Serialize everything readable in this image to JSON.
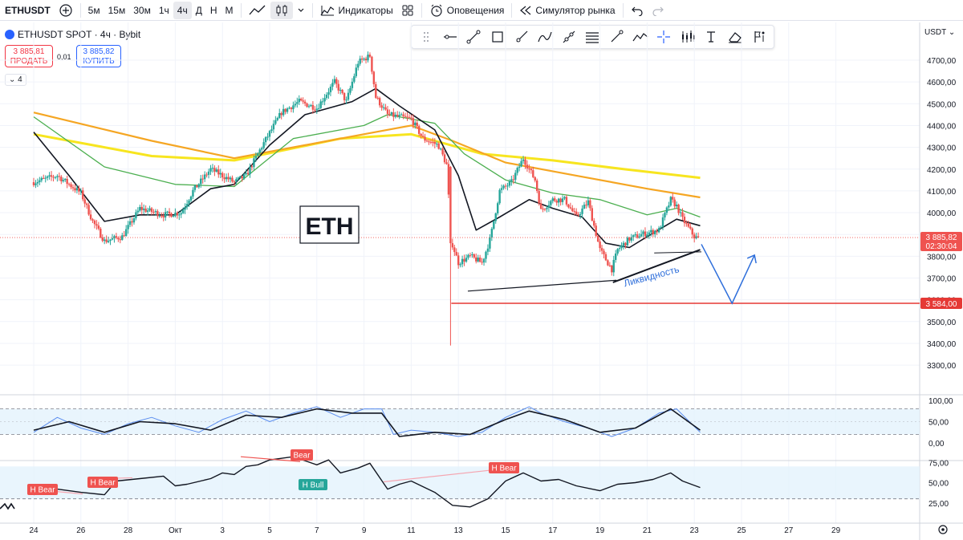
{
  "toolbar": {
    "symbol": "ETHUSDT",
    "intervals": [
      "5м",
      "15м",
      "30м",
      "1ч",
      "4ч",
      "Д",
      "Н",
      "М"
    ],
    "active_interval": "4ч",
    "indicators_label": "Индикаторы",
    "alerts_label": "Оповещения",
    "replay_label": "Симулятор рынка"
  },
  "legend": {
    "title": "ETHUSDT SPOT · 4ч · Bybit",
    "sell_price": "3 885,81",
    "sell_label": "ПРОДАТЬ",
    "spread": "0,01",
    "buy_price": "3 885,82",
    "buy_label": "КУПИТЬ",
    "indicators_count": "4"
  },
  "currency": "USDT",
  "annotations": {
    "eth_label": "ETH",
    "liquidity_label": "Ликвидность",
    "level_label": "3 584,00",
    "current_price": "3 885,82",
    "countdown": "02:30:04"
  },
  "colors": {
    "bull": "#26a69a",
    "bear": "#ef5350",
    "ema_yellow": "#f7e51f",
    "ema_orange": "#f5a623",
    "ema_green": "#4caf50",
    "ema_black": "#131722",
    "level_red": "#e53935",
    "arrow_blue": "#2f6fdb",
    "panel_fill": "#e3f2fd"
  },
  "chart_data": [
    {
      "type": "candlestick",
      "x_ticks": [
        "24",
        "26",
        "28",
        "Окт",
        "3",
        "5",
        "7",
        "9",
        "11",
        "13",
        "15",
        "17",
        "19",
        "21",
        "23",
        "25",
        "27",
        "29"
      ],
      "y_ticks": [
        "4700,00",
        "4600,00",
        "4500,00",
        "4400,00",
        "4300,00",
        "4200,00",
        "4100,00",
        "4000,00",
        "3900,00",
        "3800,00",
        "3700,00",
        "3600,00",
        "3500,00",
        "3400,00",
        "3300,00"
      ],
      "ylim": [
        3260,
        4780
      ],
      "anchors": [
        {
          "d": 0,
          "p": 4140
        },
        {
          "d": 2,
          "p": 4170
        },
        {
          "d": 4,
          "p": 4090
        },
        {
          "d": 5,
          "p": 3960
        },
        {
          "d": 6,
          "p": 3870
        },
        {
          "d": 7.5,
          "p": 3890
        },
        {
          "d": 9,
          "p": 4020
        },
        {
          "d": 11,
          "p": 3990
        },
        {
          "d": 12.5,
          "p": 4000
        },
        {
          "d": 13.5,
          "p": 4100
        },
        {
          "d": 15,
          "p": 4200
        },
        {
          "d": 17,
          "p": 4140
        },
        {
          "d": 18,
          "p": 4170
        },
        {
          "d": 19.5,
          "p": 4320
        },
        {
          "d": 21,
          "p": 4460
        },
        {
          "d": 22.5,
          "p": 4510
        },
        {
          "d": 24,
          "p": 4480
        },
        {
          "d": 25.5,
          "p": 4600
        },
        {
          "d": 26.5,
          "p": 4510
        },
        {
          "d": 27.5,
          "p": 4690
        },
        {
          "d": 28.5,
          "p": 4720
        },
        {
          "d": 29,
          "p": 4530
        },
        {
          "d": 30,
          "p": 4450
        },
        {
          "d": 32,
          "p": 4430
        },
        {
          "d": 33,
          "p": 4340
        },
        {
          "d": 34.3,
          "p": 4310
        },
        {
          "d": 35,
          "p": 4220
        },
        {
          "d": 35.4,
          "p": 3870
        },
        {
          "d": 36,
          "p": 3770
        },
        {
          "d": 37,
          "p": 3800
        },
        {
          "d": 38,
          "p": 3770
        },
        {
          "d": 38.7,
          "p": 3880
        },
        {
          "d": 39.5,
          "p": 4100
        },
        {
          "d": 40.5,
          "p": 4140
        },
        {
          "d": 41.5,
          "p": 4250
        },
        {
          "d": 42.5,
          "p": 4150
        },
        {
          "d": 43,
          "p": 4010
        },
        {
          "d": 44,
          "p": 4060
        },
        {
          "d": 45,
          "p": 4060
        },
        {
          "d": 46,
          "p": 3980
        },
        {
          "d": 47,
          "p": 4050
        },
        {
          "d": 48,
          "p": 3830
        },
        {
          "d": 49,
          "p": 3740
        },
        {
          "d": 49.5,
          "p": 3830
        },
        {
          "d": 50.5,
          "p": 3880
        },
        {
          "d": 51.5,
          "p": 3900
        },
        {
          "d": 53,
          "p": 3920
        },
        {
          "d": 54,
          "p": 4060
        },
        {
          "d": 54.5,
          "p": 4030
        },
        {
          "d": 55,
          "p": 3970
        },
        {
          "d": 56,
          "p": 3890
        },
        {
          "d": 56.4,
          "p": 3880
        }
      ],
      "ema_yellow": [
        {
          "d": 0,
          "p": 4360
        },
        {
          "d": 10,
          "p": 4260
        },
        {
          "d": 17,
          "p": 4240
        },
        {
          "d": 26,
          "p": 4340
        },
        {
          "d": 32,
          "p": 4360
        },
        {
          "d": 38,
          "p": 4270
        },
        {
          "d": 44,
          "p": 4240
        },
        {
          "d": 50,
          "p": 4200
        },
        {
          "d": 56.5,
          "p": 4160
        }
      ],
      "ema_orange": [
        {
          "d": 0,
          "p": 4460
        },
        {
          "d": 10,
          "p": 4330
        },
        {
          "d": 17,
          "p": 4250
        },
        {
          "d": 26,
          "p": 4340
        },
        {
          "d": 32,
          "p": 4400
        },
        {
          "d": 35.5,
          "p": 4330
        },
        {
          "d": 40,
          "p": 4230
        },
        {
          "d": 46,
          "p": 4170
        },
        {
          "d": 52,
          "p": 4110
        },
        {
          "d": 56.5,
          "p": 4070
        }
      ],
      "ema_green": [
        {
          "d": 0,
          "p": 4440
        },
        {
          "d": 6,
          "p": 4210
        },
        {
          "d": 12,
          "p": 4130
        },
        {
          "d": 17,
          "p": 4120
        },
        {
          "d": 22,
          "p": 4340
        },
        {
          "d": 28,
          "p": 4400
        },
        {
          "d": 30,
          "p": 4450
        },
        {
          "d": 34,
          "p": 4410
        },
        {
          "d": 36.5,
          "p": 4270
        },
        {
          "d": 40,
          "p": 4150
        },
        {
          "d": 44,
          "p": 4090
        },
        {
          "d": 48,
          "p": 4060
        },
        {
          "d": 52,
          "p": 3990
        },
        {
          "d": 54.5,
          "p": 4020
        },
        {
          "d": 56.5,
          "p": 3980
        }
      ],
      "ema_black": [
        {
          "d": 0,
          "p": 4370
        },
        {
          "d": 3,
          "p": 4170
        },
        {
          "d": 6,
          "p": 3960
        },
        {
          "d": 9,
          "p": 3990
        },
        {
          "d": 12,
          "p": 3990
        },
        {
          "d": 15,
          "p": 4110
        },
        {
          "d": 17,
          "p": 4130
        },
        {
          "d": 20,
          "p": 4310
        },
        {
          "d": 23,
          "p": 4450
        },
        {
          "d": 27,
          "p": 4510
        },
        {
          "d": 29,
          "p": 4570
        },
        {
          "d": 31,
          "p": 4490
        },
        {
          "d": 34,
          "p": 4380
        },
        {
          "d": 36,
          "p": 4170
        },
        {
          "d": 37.5,
          "p": 3920
        },
        {
          "d": 39.5,
          "p": 3980
        },
        {
          "d": 42,
          "p": 4060
        },
        {
          "d": 44,
          "p": 4020
        },
        {
          "d": 46.5,
          "p": 3980
        },
        {
          "d": 48.5,
          "p": 3860
        },
        {
          "d": 50.5,
          "p": 3840
        },
        {
          "d": 52,
          "p": 3890
        },
        {
          "d": 54.5,
          "p": 3970
        },
        {
          "d": 56.5,
          "p": 3940
        }
      ]
    },
    {
      "type": "line",
      "name": "oscillator-1",
      "y_ticks": [
        "100,00",
        "50,00",
        "0,00"
      ],
      "ylim": [
        0,
        100
      ],
      "bands": [
        20,
        80
      ],
      "line": [
        {
          "d": 0,
          "v": 25
        },
        {
          "d": 2,
          "v": 60
        },
        {
          "d": 4,
          "v": 35
        },
        {
          "d": 6,
          "v": 20
        },
        {
          "d": 8,
          "v": 45
        },
        {
          "d": 10,
          "v": 60
        },
        {
          "d": 12,
          "v": 40
        },
        {
          "d": 14,
          "v": 25
        },
        {
          "d": 16,
          "v": 55
        },
        {
          "d": 18,
          "v": 75
        },
        {
          "d": 20,
          "v": 50
        },
        {
          "d": 22,
          "v": 70
        },
        {
          "d": 24,
          "v": 85
        },
        {
          "d": 26,
          "v": 60
        },
        {
          "d": 28,
          "v": 80
        },
        {
          "d": 29.5,
          "v": 80
        },
        {
          "d": 30.5,
          "v": 20
        },
        {
          "d": 32,
          "v": 30
        },
        {
          "d": 34,
          "v": 25
        },
        {
          "d": 36,
          "v": 15
        },
        {
          "d": 38,
          "v": 25
        },
        {
          "d": 40,
          "v": 60
        },
        {
          "d": 42,
          "v": 85
        },
        {
          "d": 43,
          "v": 70
        },
        {
          "d": 45,
          "v": 50
        },
        {
          "d": 47,
          "v": 35
        },
        {
          "d": 49,
          "v": 15
        },
        {
          "d": 51,
          "v": 35
        },
        {
          "d": 53,
          "v": 70
        },
        {
          "d": 54.5,
          "v": 80
        },
        {
          "d": 56.5,
          "v": 25
        }
      ],
      "signal": [
        {
          "d": 0,
          "v": 30
        },
        {
          "d": 3,
          "v": 50
        },
        {
          "d": 6,
          "v": 25
        },
        {
          "d": 9,
          "v": 50
        },
        {
          "d": 12,
          "v": 45
        },
        {
          "d": 15,
          "v": 30
        },
        {
          "d": 18,
          "v": 65
        },
        {
          "d": 21,
          "v": 60
        },
        {
          "d": 24,
          "v": 80
        },
        {
          "d": 27,
          "v": 70
        },
        {
          "d": 29.5,
          "v": 70
        },
        {
          "d": 31,
          "v": 15
        },
        {
          "d": 34,
          "v": 25
        },
        {
          "d": 37,
          "v": 20
        },
        {
          "d": 40,
          "v": 55
        },
        {
          "d": 42,
          "v": 75
        },
        {
          "d": 45,
          "v": 55
        },
        {
          "d": 48,
          "v": 25
        },
        {
          "d": 51,
          "v": 35
        },
        {
          "d": 54,
          "v": 80
        },
        {
          "d": 56.5,
          "v": 30
        }
      ]
    },
    {
      "type": "line",
      "name": "oscillator-2",
      "y_ticks": [
        "75,00",
        "50,00",
        "25,00"
      ],
      "ylim": [
        10,
        85
      ],
      "bands": [
        30,
        70
      ],
      "line": [
        {
          "d": 0,
          "v": 35
        },
        {
          "d": 2,
          "v": 42
        },
        {
          "d": 4,
          "v": 38
        },
        {
          "d": 6,
          "v": 35
        },
        {
          "d": 7,
          "v": 52
        },
        {
          "d": 9,
          "v": 55
        },
        {
          "d": 11,
          "v": 58
        },
        {
          "d": 12,
          "v": 46
        },
        {
          "d": 13,
          "v": 48
        },
        {
          "d": 15,
          "v": 55
        },
        {
          "d": 16,
          "v": 62
        },
        {
          "d": 17,
          "v": 60
        },
        {
          "d": 18,
          "v": 70
        },
        {
          "d": 19,
          "v": 72
        },
        {
          "d": 20,
          "v": 78
        },
        {
          "d": 22,
          "v": 82
        },
        {
          "d": 24,
          "v": 72
        },
        {
          "d": 25,
          "v": 78
        },
        {
          "d": 26,
          "v": 62
        },
        {
          "d": 27.5,
          "v": 68
        },
        {
          "d": 28.5,
          "v": 74
        },
        {
          "d": 30,
          "v": 42
        },
        {
          "d": 31,
          "v": 48
        },
        {
          "d": 32,
          "v": 52
        },
        {
          "d": 34,
          "v": 38
        },
        {
          "d": 35.5,
          "v": 22
        },
        {
          "d": 37,
          "v": 20
        },
        {
          "d": 38.5,
          "v": 30
        },
        {
          "d": 40,
          "v": 52
        },
        {
          "d": 41.5,
          "v": 62
        },
        {
          "d": 43,
          "v": 52
        },
        {
          "d": 44.5,
          "v": 54
        },
        {
          "d": 46,
          "v": 46
        },
        {
          "d": 48,
          "v": 40
        },
        {
          "d": 49.5,
          "v": 48
        },
        {
          "d": 51,
          "v": 50
        },
        {
          "d": 52.5,
          "v": 54
        },
        {
          "d": 54,
          "v": 62
        },
        {
          "d": 55,
          "v": 52
        },
        {
          "d": 56.5,
          "v": 44
        }
      ]
    }
  ],
  "divergence_labels": {
    "h_bear_1": "H Bear",
    "h_bear_2": "H Bear",
    "bear": "Bear",
    "h_bull": "H Bull",
    "h_bear_3": "H Bear"
  }
}
